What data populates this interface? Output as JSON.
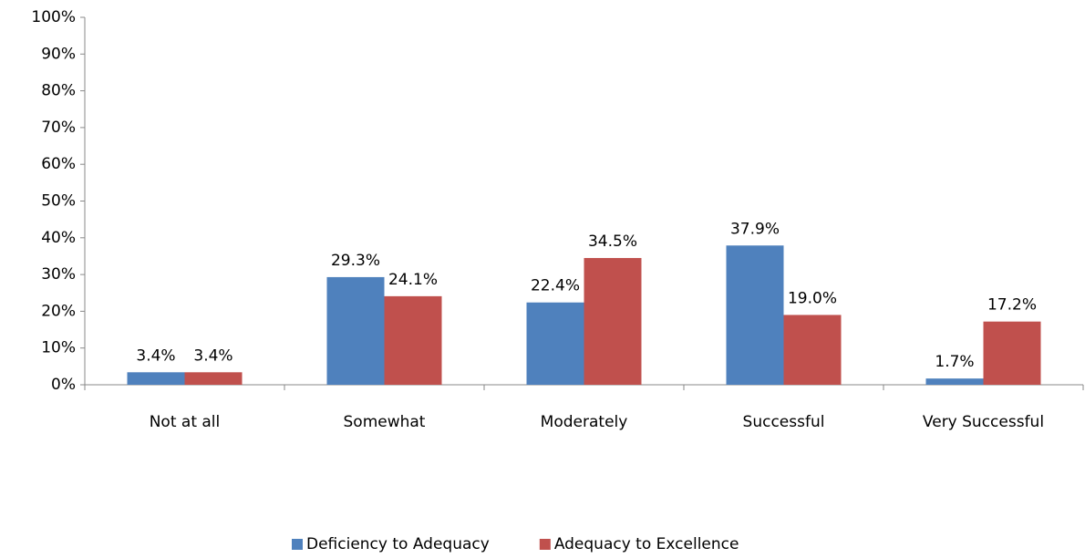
{
  "chart_data": {
    "type": "bar",
    "categories": [
      "Not at all",
      "Somewhat",
      "Moderately",
      "Successful",
      "Very Successful"
    ],
    "series": [
      {
        "name": "Deficiency to Adequacy",
        "color": "#4f81bd",
        "values": [
          3.4,
          29.3,
          22.4,
          37.9,
          1.7
        ],
        "value_labels": [
          "3.4%",
          "29.3%",
          "22.4%",
          "37.9%",
          "1.7%"
        ]
      },
      {
        "name": "Adequacy to Excellence",
        "color": "#c0504d",
        "values": [
          3.4,
          24.1,
          34.5,
          19.0,
          17.2
        ],
        "value_labels": [
          "3.4%",
          "24.1%",
          "34.5%",
          "19.0%",
          "17.2%"
        ]
      }
    ],
    "ylim": [
      0,
      100
    ],
    "yticks": [
      {
        "value": 0,
        "label": "0%"
      },
      {
        "value": 10,
        "label": "10%"
      },
      {
        "value": 20,
        "label": "20%"
      },
      {
        "value": 30,
        "label": "30%"
      },
      {
        "value": 40,
        "label": "40%"
      },
      {
        "value": 50,
        "label": "50%"
      },
      {
        "value": 60,
        "label": "60%"
      },
      {
        "value": 70,
        "label": "70%"
      },
      {
        "value": 80,
        "label": "80%"
      },
      {
        "value": 90,
        "label": "90%"
      },
      {
        "value": 100,
        "label": "100%"
      }
    ],
    "grid": false,
    "legend": "bottom"
  }
}
